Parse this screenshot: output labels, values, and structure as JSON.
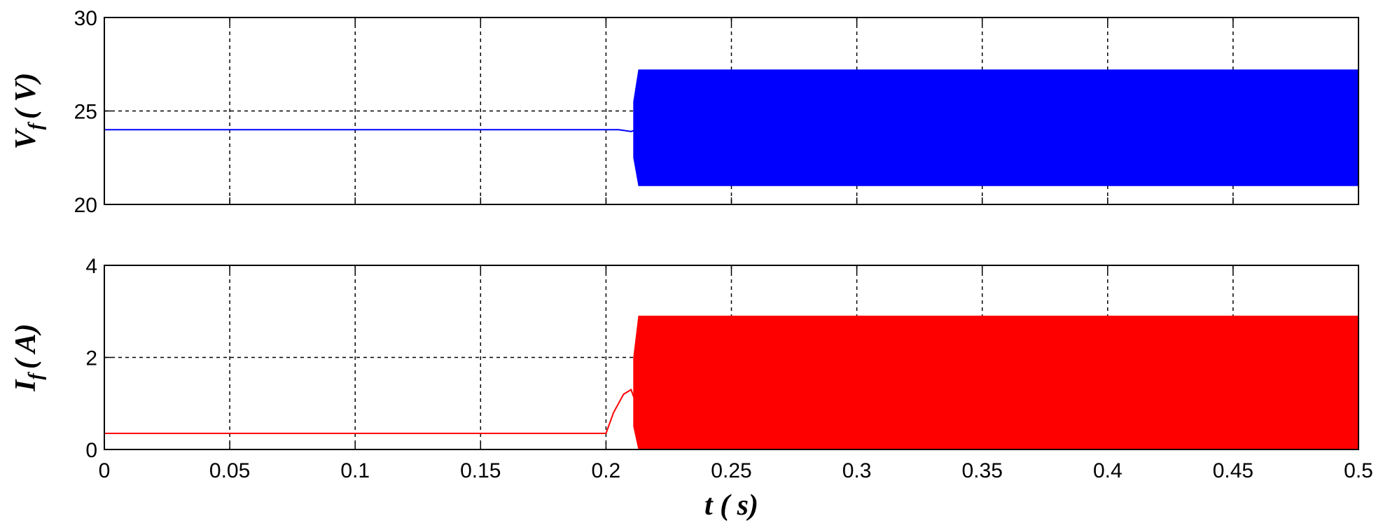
{
  "chart_data": [
    {
      "type": "line",
      "ylabel": {
        "main": "V",
        "sub": "f",
        "rest": "( V)"
      },
      "xlim": [
        0,
        0.5
      ],
      "xticks": [
        0,
        0.05,
        0.1,
        0.15,
        0.2,
        0.25,
        0.3,
        0.35,
        0.4,
        0.45,
        0.5
      ],
      "ylim": [
        20,
        30
      ],
      "yticks": [
        20,
        25,
        30
      ],
      "grid": true,
      "xtick_labels": false,
      "series": [
        {
          "color": "#0000ff",
          "x": [
            0,
            0.2,
            0.205,
            0.21,
            0.212
          ],
          "values": [
            24,
            24,
            24,
            23.9,
            24
          ]
        }
      ],
      "band": {
        "color": "#0000ff",
        "x": [
          0.211,
          0.213,
          0.5
        ],
        "upper": [
          25.5,
          27.2,
          27.2
        ],
        "lower": [
          22.5,
          21,
          21
        ]
      }
    },
    {
      "type": "line",
      "ylabel": {
        "main": "I",
        "sub": "f",
        "rest": "( A)"
      },
      "xlabel": "t ( s)",
      "xlim": [
        0,
        0.5
      ],
      "xticks": [
        0,
        0.05,
        0.1,
        0.15,
        0.2,
        0.25,
        0.3,
        0.35,
        0.4,
        0.45,
        0.5
      ],
      "ylim": [
        0,
        4
      ],
      "yticks": [
        0,
        2,
        4
      ],
      "grid": true,
      "xtick_labels": true,
      "series": [
        {
          "color": "#ff0000",
          "x": [
            0,
            0.2,
            0.203,
            0.207,
            0.21,
            0.212
          ],
          "values": [
            0.35,
            0.35,
            0.8,
            1.2,
            1.3,
            1.0
          ]
        }
      ],
      "band": {
        "color": "#ff0000",
        "x": [
          0.211,
          0.213,
          0.5
        ],
        "upper": [
          2.0,
          2.9,
          2.9
        ],
        "lower": [
          0.5,
          0,
          0
        ]
      }
    }
  ]
}
